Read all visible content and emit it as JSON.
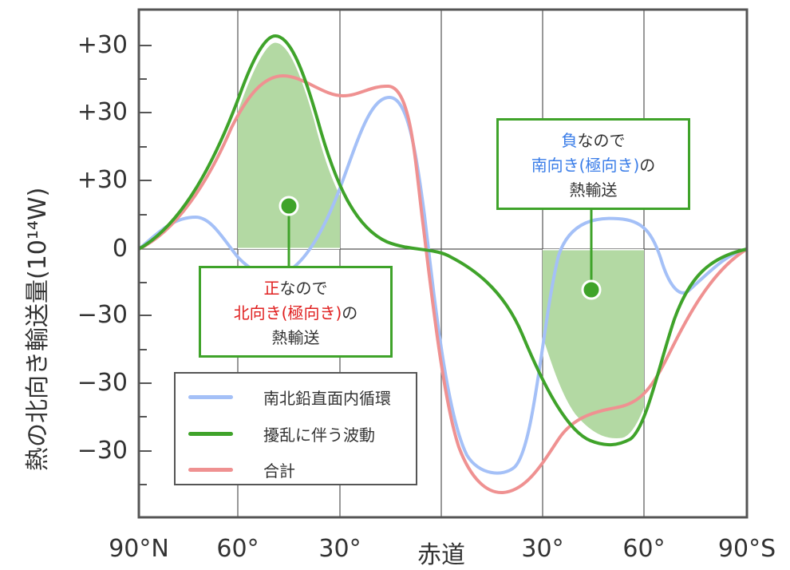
{
  "y_axis": {
    "label": "熱の北向き輸送量(10¹⁴W)",
    "ticks": [
      "+30",
      "+30",
      "+30",
      "0",
      "−30",
      "−30",
      "−30"
    ]
  },
  "x_axis": {
    "ticks": [
      "90°N",
      "60°",
      "30°",
      "赤道",
      "30°",
      "60°",
      "90°S"
    ]
  },
  "legend": [
    {
      "label": "南北鉛直面内循環",
      "color": "#a4c0f7"
    },
    {
      "label": "擾乱に伴う波動",
      "color": "#3fa32a"
    },
    {
      "label": "合計",
      "color": "#ef9191"
    }
  ],
  "notes": {
    "north": {
      "line1_accent": "正",
      "line1_rest": "なので",
      "line2_accent": "北向き(極向き)",
      "line2_rest": "の",
      "line3": "熱輸送"
    },
    "south": {
      "line1_accent": "負",
      "line1_rest": "なので",
      "line2_accent": "南向き(極向き)",
      "line2_rest": "の",
      "line3": "熱輸送"
    }
  },
  "colors": {
    "fill": "#b3d9a3",
    "wave": "#3fa32a",
    "circulation": "#a4c0f7",
    "total": "#ef9191",
    "accent_red": "#e02020",
    "accent_blue": "#3a7de8"
  }
}
